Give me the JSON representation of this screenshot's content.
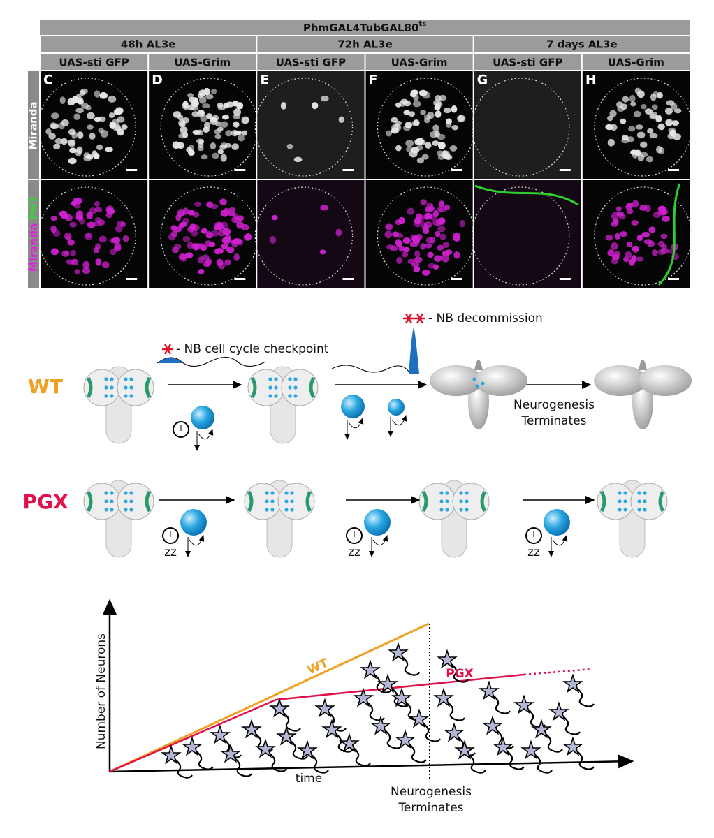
{
  "header": {
    "title": "PhmGAL4TubGAL80",
    "superscript": "ts"
  },
  "groups": [
    "48h AL3e",
    "72h AL3e",
    "7 days AL3e"
  ],
  "columns": [
    "UAS-sti GFP",
    "UAS-Grim",
    "UAS-sti GFP",
    "UAS-Grim",
    "UAS-sti GFP",
    "UAS-Grim"
  ],
  "panels": [
    "C",
    "D",
    "E",
    "F",
    "G",
    "H"
  ],
  "row_labels": {
    "top": "Miranda",
    "bottom": [
      "Miranda",
      "PH3"
    ]
  },
  "schematic": {
    "checkpoint": "- NB cell cycle checkpoint",
    "decommission": "- NB decommission",
    "rows": [
      "WT",
      "PGX"
    ],
    "wt_end": [
      "Neurogenesis",
      "Terminates"
    ],
    "sleep": [
      "zz",
      "zz",
      "zz"
    ]
  },
  "graph": {
    "y_label": "Number of Neurons",
    "x_label": "time",
    "lines": [
      "WT",
      "PGX"
    ],
    "event": [
      "Neurogenesis",
      "Terminates"
    ]
  }
}
